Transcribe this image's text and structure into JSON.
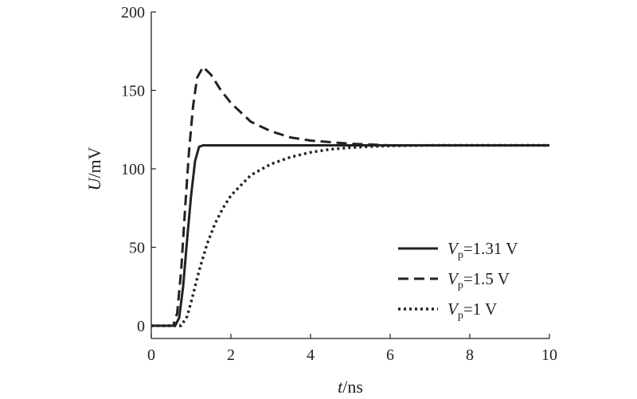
{
  "chart_data": {
    "type": "line",
    "xlabel_var": "t",
    "xlabel_unit": "/ns",
    "ylabel_var": "U",
    "ylabel_unit": "/mV",
    "xlim": [
      0,
      10
    ],
    "ylim": [
      0,
      200
    ],
    "xticks": [
      0,
      2,
      4,
      6,
      8,
      10
    ],
    "yticks": [
      0,
      50,
      100,
      150,
      200
    ],
    "grid": false,
    "legend_position": "lower-right",
    "series": [
      {
        "name_var": "V",
        "name_sub": "p",
        "name_value": "=1.31 V",
        "style": "solid",
        "x": [
          0,
          0.6,
          0.7,
          0.8,
          0.9,
          1.0,
          1.1,
          1.2,
          1.3,
          2,
          4,
          6,
          8,
          10
        ],
        "y": [
          0,
          0,
          5,
          25,
          55,
          83,
          105,
          114,
          115,
          115,
          115,
          115,
          115,
          115
        ]
      },
      {
        "name_var": "V",
        "name_sub": "p",
        "name_value": "=1.5 V",
        "style": "dashed",
        "x": [
          0,
          0.55,
          0.65,
          0.75,
          0.85,
          0.95,
          1.05,
          1.15,
          1.3,
          1.5,
          1.75,
          2.0,
          2.5,
          3.0,
          3.5,
          4.0,
          4.5,
          5.0,
          5.5,
          6.0,
          7.0,
          8.0,
          9.0,
          10.0
        ],
        "y": [
          0,
          0,
          8,
          35,
          75,
          112,
          140,
          158,
          165,
          160,
          150,
          142,
          130,
          124,
          120,
          118,
          117,
          116,
          115.5,
          115,
          115,
          115,
          115,
          115
        ]
      },
      {
        "name_var": "V",
        "name_sub": "p",
        "name_value": "=1 V",
        "style": "dotted",
        "x": [
          0,
          0.75,
          0.9,
          1.0,
          1.2,
          1.4,
          1.6,
          1.8,
          2.0,
          2.5,
          3.0,
          3.5,
          4.0,
          4.5,
          5.0,
          5.5,
          6.0,
          7.0,
          8.0,
          9.0,
          10.0
        ],
        "y": [
          0,
          0,
          6,
          15,
          35,
          52,
          65,
          75,
          83,
          96,
          103,
          107.5,
          110.5,
          112.5,
          113.5,
          114.2,
          114.6,
          115,
          115,
          115,
          115
        ]
      }
    ]
  }
}
